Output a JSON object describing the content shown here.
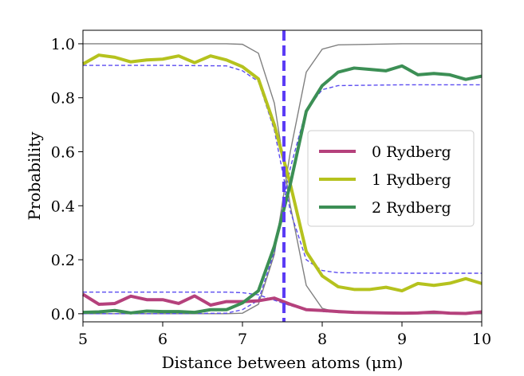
{
  "chart_data": {
    "type": "line",
    "xlabel": "Distance between atoms (μm)",
    "ylabel": "Probability",
    "xlim": [
      5,
      10
    ],
    "ylim": [
      -0.03,
      1.05
    ],
    "xticks": [
      "5",
      "6",
      "7",
      "8",
      "9",
      "10"
    ],
    "yticks": [
      "0.0",
      "0.2",
      "0.4",
      "0.6",
      "0.8",
      "1.0"
    ],
    "grid": false,
    "legend_position": "center-right",
    "x": [
      5.0,
      5.2,
      5.4,
      5.6,
      5.8,
      6.0,
      6.2,
      6.4,
      6.6,
      6.8,
      7.0,
      7.2,
      7.4,
      7.6,
      7.8,
      8.0,
      8.2,
      8.4,
      8.6,
      8.8,
      9.0,
      9.2,
      9.4,
      9.6,
      9.8,
      10.0
    ],
    "series": [
      {
        "name": "0 Rydberg",
        "color": "#b5417c",
        "values": [
          0.072,
          0.035,
          0.038,
          0.065,
          0.052,
          0.052,
          0.038,
          0.066,
          0.032,
          0.045,
          0.045,
          0.048,
          0.058,
          0.035,
          0.015,
          0.012,
          0.008,
          0.005,
          0.004,
          0.003,
          0.002,
          0.003,
          0.006,
          0.002,
          0.001,
          0.007
        ]
      },
      {
        "name": "1 Rydberg",
        "color": "#b5c21e",
        "values": [
          0.925,
          0.958,
          0.95,
          0.933,
          0.94,
          0.943,
          0.955,
          0.93,
          0.955,
          0.94,
          0.915,
          0.87,
          0.7,
          0.48,
          0.23,
          0.14,
          0.1,
          0.09,
          0.09,
          0.098,
          0.085,
          0.112,
          0.105,
          0.113,
          0.13,
          0.112
        ]
      },
      {
        "name": "2 Rydberg",
        "color": "#3c8f55",
        "values": [
          0.005,
          0.007,
          0.012,
          0.003,
          0.01,
          0.008,
          0.008,
          0.005,
          0.015,
          0.015,
          0.04,
          0.085,
          0.25,
          0.48,
          0.75,
          0.845,
          0.895,
          0.91,
          0.905,
          0.9,
          0.918,
          0.885,
          0.89,
          0.885,
          0.868,
          0.88
        ]
      }
    ],
    "reference_curves": [
      {
        "style": "solid",
        "color": "#808080",
        "x": [
          5.0,
          6.0,
          6.8,
          7.0,
          7.2,
          7.4,
          7.6,
          7.8,
          8.0,
          8.2,
          9.0,
          10.0
        ],
        "values": [
          1.0,
          1.0,
          1.0,
          0.998,
          0.965,
          0.78,
          0.4,
          0.105,
          0.02,
          0.004,
          0.0,
          0.0
        ]
      },
      {
        "style": "solid",
        "color": "#808080",
        "x": [
          5.0,
          6.0,
          6.8,
          7.0,
          7.2,
          7.4,
          7.6,
          7.8,
          8.0,
          8.2,
          9.0,
          10.0
        ],
        "values": [
          0.0,
          0.0,
          0.0,
          0.002,
          0.035,
          0.22,
          0.6,
          0.895,
          0.98,
          0.996,
          1.0,
          1.0
        ]
      },
      {
        "style": "dashed",
        "color": "#5b4cf0",
        "x": [
          5.0,
          6.0,
          6.8,
          7.0,
          7.2,
          7.4,
          7.6,
          7.8,
          8.0,
          8.2,
          9.0,
          10.0
        ],
        "values": [
          0.92,
          0.92,
          0.918,
          0.9,
          0.86,
          0.68,
          0.38,
          0.2,
          0.16,
          0.152,
          0.15,
          0.15
        ]
      },
      {
        "style": "dashed",
        "color": "#5b4cf0",
        "x": [
          5.0,
          6.0,
          6.8,
          7.0,
          7.2,
          7.4,
          7.6,
          7.8,
          8.0,
          8.2,
          9.0,
          10.0
        ],
        "values": [
          0.0,
          0.0,
          0.002,
          0.015,
          0.05,
          0.23,
          0.54,
          0.755,
          0.83,
          0.845,
          0.848,
          0.848
        ]
      },
      {
        "style": "dashed",
        "color": "#5b4cf0",
        "x": [
          5.0,
          6.0,
          6.8,
          7.0,
          7.2,
          7.4,
          7.6,
          7.8,
          8.0,
          8.2,
          9.0,
          10.0
        ],
        "values": [
          0.08,
          0.08,
          0.08,
          0.078,
          0.07,
          0.05,
          0.03,
          0.015,
          0.008,
          0.005,
          0.005,
          0.005
        ]
      }
    ],
    "vertical_line": {
      "x": 7.52,
      "color": "#5b3cf5",
      "style": "dashed"
    }
  }
}
